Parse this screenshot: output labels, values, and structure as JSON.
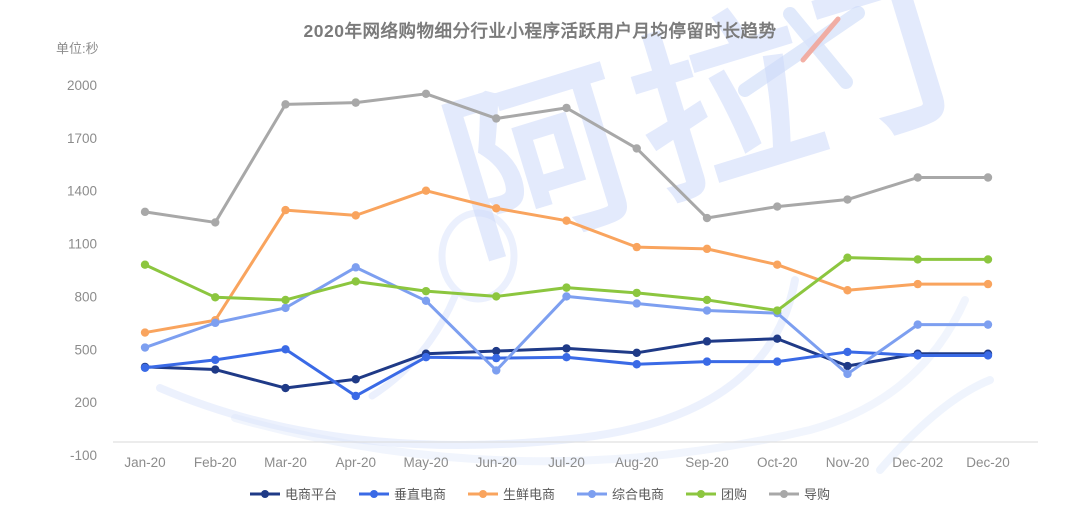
{
  "header": {
    "title": "2020年网络购物细分行业小程序活跃用户月均停留时长趋势"
  },
  "axis": {
    "unit_label": "单位:秒"
  },
  "watermark": {
    "text": "阿拉丁",
    "blue": "#d9e3fb",
    "accent_color": "#f2a79b"
  },
  "chart_data": {
    "type": "line",
    "title": "2020年网络购物细分行业小程序活跃用户月均停留时长趋势",
    "ylabel": "单位:秒",
    "xlabel": "",
    "grid": false,
    "legend_position": "bottom",
    "ylim": [
      -100,
      2000
    ],
    "ytick_step": 300,
    "yticks": [
      2000,
      1700,
      1400,
      1100,
      800,
      500,
      200,
      -100
    ],
    "tick_color": "#8c8c8c",
    "title_color": "#7b7b7b",
    "categories": [
      "Jan-20",
      "Feb-20",
      "Mar-20",
      "Apr-20",
      "May-20",
      "Jun-20",
      "Jul-20",
      "Aug-20",
      "Sep-20",
      "Oct-20",
      "Nov-20",
      "Dec-202",
      "Dec-20"
    ],
    "series": [
      {
        "name": "电商平台",
        "color": "#1f3a87",
        "values": [
          400,
          385,
          280,
          330,
          475,
          490,
          505,
          480,
          545,
          560,
          405,
          475,
          475
        ]
      },
      {
        "name": "垂直电商",
        "color": "#3a6ae6",
        "values": [
          395,
          440,
          500,
          235,
          455,
          450,
          455,
          415,
          430,
          430,
          485,
          465,
          465
        ]
      },
      {
        "name": "生鲜电商",
        "color": "#f9a45e",
        "values": [
          595,
          665,
          1290,
          1260,
          1400,
          1300,
          1230,
          1080,
          1070,
          980,
          835,
          870,
          870
        ]
      },
      {
        "name": "综合电商",
        "color": "#7d9ff0",
        "values": [
          510,
          650,
          735,
          965,
          775,
          380,
          800,
          760,
          720,
          705,
          360,
          640,
          640
        ]
      },
      {
        "name": "团购",
        "color": "#8cc63f",
        "values": [
          980,
          795,
          780,
          885,
          830,
          800,
          850,
          820,
          780,
          720,
          1020,
          1010,
          1010
        ]
      },
      {
        "name": "导购",
        "color": "#a8a8a8",
        "values": [
          1280,
          1220,
          1890,
          1900,
          1950,
          1810,
          1870,
          1640,
          1245,
          1310,
          1350,
          1475,
          1475
        ]
      }
    ]
  }
}
